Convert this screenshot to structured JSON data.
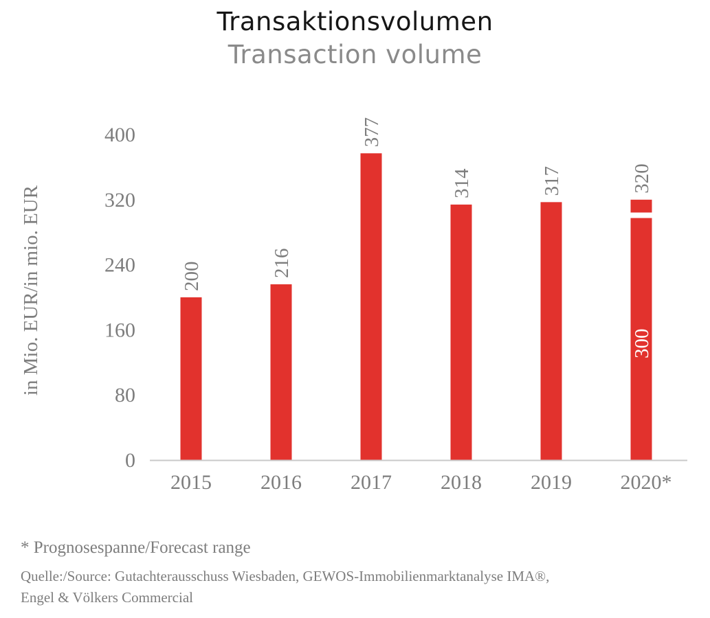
{
  "header": {
    "title_de": "Transaktionsvolumen",
    "title_en": "Transaction volume"
  },
  "colors": {
    "bar": "#e2322d",
    "axis": "#c8c8c8",
    "text": "#7d7d7d",
    "title": "#161616",
    "subtitle": "#8a8a8a"
  },
  "chart_data": {
    "type": "bar",
    "title": "Transaktionsvolumen / Transaction volume",
    "xlabel": "",
    "ylabel": "in Mio. EUR/in mio. EUR",
    "ylim": [
      0,
      400
    ],
    "yticks": [
      0,
      80,
      160,
      240,
      320,
      400
    ],
    "grid": false,
    "categories": [
      "2015",
      "2016",
      "2017",
      "2018",
      "2019",
      "2020*"
    ],
    "values": [
      200,
      216,
      377,
      314,
      317,
      320
    ],
    "data_labels": [
      "200",
      "216",
      "377",
      "314",
      "317",
      "320"
    ],
    "forecast_range": {
      "category": "2020*",
      "low": 300,
      "high": 320,
      "low_label": "300"
    }
  },
  "footer": {
    "footnote": "* Prognosespanne/Forecast range",
    "source_line1": "Quelle:/Source: Gutachterausschuss Wiesbaden, GEWOS-Immobilienmarktanalyse IMA®,",
    "source_line2": "Engel & Völkers Commercial"
  }
}
